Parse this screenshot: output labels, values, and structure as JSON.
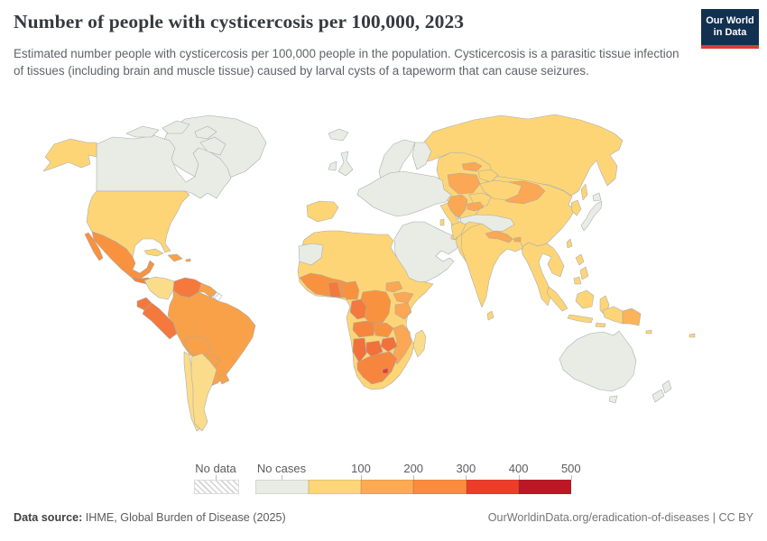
{
  "header": {
    "title": "Number of people with cysticercosis per 100,000, 2023",
    "subtitle": "Estimated number people with cysticercosis per 100,000 people in the population. Cysticercosis is a parasitic tissue infection of tissues (including brain and muscle tissue) caused by larval cysts of a tapeworm that can cause seizures.",
    "logo": {
      "line1": "Our World",
      "line2": "in Data",
      "bg": "#12304f",
      "accent": "#dc3c31"
    }
  },
  "legend": {
    "no_data_label": "No data",
    "no_cases_label": "No cases",
    "tick_labels": [
      "100",
      "200",
      "300",
      "400",
      "500"
    ],
    "bins": [
      {
        "label": "No cases",
        "color": "#e8ece4"
      },
      {
        "label": "100",
        "color": "#fdd67a"
      },
      {
        "label": "200",
        "color": "#fcab53"
      },
      {
        "label": "300",
        "color": "#fb8c3e"
      },
      {
        "label": "400",
        "color": "#ee3c2b"
      },
      {
        "label": "500",
        "color": "#bd1726"
      }
    ]
  },
  "footer": {
    "source_label": "Data source:",
    "source": "IHME, Global Burden of Disease (2025)",
    "right": "OurWorldinData.org/eradication-of-diseases | CC BY"
  },
  "chart_data": {
    "type": "heatmap",
    "subtype": "choropleth-world-map",
    "title": "Number of people with cysticercosis per 100,000, 2023",
    "unit": "cases per 100,000 people",
    "legend_position": "bottom",
    "bin_edges": [
      0,
      100,
      200,
      300,
      400,
      500
    ],
    "bin_colors": [
      "#e8ece4",
      "#fdd67a",
      "#fcab53",
      "#fb8c3e",
      "#ee3c2b",
      "#bd1726"
    ],
    "no_data_style": "hatched"
  },
  "map": {
    "ocean": "#ffffff",
    "border_color": "#a5aaac",
    "regions": [
      {
        "id": "russia",
        "bin": "0-100",
        "fill": "#fdd577"
      },
      {
        "id": "central_asia",
        "bin": "0-100",
        "fill": "#fdd577"
      },
      {
        "id": "turkmenistan",
        "bin": "no_cases",
        "fill": "#e8ece4"
      },
      {
        "id": "china",
        "bin": "0-100",
        "fill": "#fdd577"
      },
      {
        "id": "mongolia",
        "bin": "100-200",
        "fill": "#fba754"
      },
      {
        "id": "korea",
        "bin": "0-100",
        "fill": "#fdd577"
      },
      {
        "id": "japan",
        "bin": "no_cases",
        "fill": "#e8ece4"
      },
      {
        "id": "taiwan",
        "bin": "0-100",
        "fill": "#fdd577"
      },
      {
        "id": "se_asia",
        "bin": "0-100",
        "fill": "#fdd577"
      },
      {
        "id": "philippines",
        "bin": "0-100",
        "fill": "#fdd577"
      },
      {
        "id": "indonesia",
        "bin": "0-100",
        "fill": "#fdd577"
      },
      {
        "id": "papua_new_guinea",
        "bin": "100-200",
        "fill": "#fbb458"
      },
      {
        "id": "pacific_islands",
        "bin": "0-100",
        "fill": "#fdd577"
      },
      {
        "id": "australia",
        "bin": "no_cases",
        "fill": "#e8ece4"
      },
      {
        "id": "new_zealand",
        "bin": "no_cases",
        "fill": "#e8ece4"
      },
      {
        "id": "middle_east",
        "bin": "no_cases",
        "fill": "#e8ece4"
      },
      {
        "id": "turkey",
        "bin": "no_cases",
        "fill": "#e8ece4"
      },
      {
        "id": "cyprus",
        "bin": "no_cases",
        "fill": "#e8ece4"
      },
      {
        "id": "afghanistan_pakistan",
        "bin": "0-100",
        "fill": "#fdd577"
      },
      {
        "id": "india",
        "bin": "0-100",
        "fill": "#fdd577"
      },
      {
        "id": "nepal",
        "bin": "100-200",
        "fill": "#fba754"
      },
      {
        "id": "bhutan",
        "bin": "100-200",
        "fill": "#fba754"
      },
      {
        "id": "sri_lanka",
        "bin": "0-100",
        "fill": "#fdd577"
      },
      {
        "id": "iceland",
        "bin": "no_cases",
        "fill": "#e8ece4"
      },
      {
        "id": "uk",
        "bin": "no_cases",
        "fill": "#e8ece4"
      },
      {
        "id": "ireland",
        "bin": "no_cases",
        "fill": "#e8ece4"
      },
      {
        "id": "scandinavia",
        "bin": "no_cases",
        "fill": "#e8ece4"
      },
      {
        "id": "finland",
        "bin": "no_cases",
        "fill": "#e8ece4"
      },
      {
        "id": "denmark",
        "bin": "no_cases",
        "fill": "#e8ece4"
      },
      {
        "id": "west_europe",
        "bin": "no_cases",
        "fill": "#e8ece4"
      },
      {
        "id": "iberia",
        "bin": "0-100",
        "fill": "#fdd577"
      },
      {
        "id": "italy",
        "bin": "0-100",
        "fill": "#fdd577"
      },
      {
        "id": "poland",
        "bin": "100-200",
        "fill": "#fba754"
      },
      {
        "id": "baltics",
        "bin": "100-200",
        "fill": "#fba754"
      },
      {
        "id": "belarus",
        "bin": "0-100",
        "fill": "#fdd577"
      },
      {
        "id": "ukraine",
        "bin": "0-100",
        "fill": "#fdd577"
      },
      {
        "id": "romania",
        "bin": "0-100",
        "fill": "#fdd577"
      },
      {
        "id": "balkans",
        "bin": "100-200",
        "fill": "#fba754"
      },
      {
        "id": "bulgaria",
        "bin": "100-200",
        "fill": "#fba754"
      },
      {
        "id": "greece",
        "bin": "0-100",
        "fill": "#fdd577"
      },
      {
        "id": "africa",
        "bin": "0-100",
        "fill": "#fdd577"
      },
      {
        "id": "western_sahara",
        "bin": "no_cases",
        "fill": "#e8ece4"
      },
      {
        "id": "west_africa",
        "bin": "200-300",
        "fill": "#f9923f"
      },
      {
        "id": "ghana_togo_benin",
        "bin": "200-300",
        "fill": "#f4793c"
      },
      {
        "id": "nigeria",
        "bin": "200-300",
        "fill": "#f9923f"
      },
      {
        "id": "cameroon_gabon_congo",
        "bin": "200-300",
        "fill": "#f4793c"
      },
      {
        "id": "drc_car",
        "bin": "200-300",
        "fill": "#f9923f"
      },
      {
        "id": "south_sudan",
        "bin": "100-200",
        "fill": "#fba754"
      },
      {
        "id": "uganda_kenya",
        "bin": "100-200",
        "fill": "#fba754"
      },
      {
        "id": "tanzania",
        "bin": "100-200",
        "fill": "#fba754"
      },
      {
        "id": "angola",
        "bin": "200-300",
        "fill": "#f6863d"
      },
      {
        "id": "zambia",
        "bin": "200-300",
        "fill": "#f9923f"
      },
      {
        "id": "malawi_mozambique",
        "bin": "100-200",
        "fill": "#fba754"
      },
      {
        "id": "zimbabwe",
        "bin": "200-300",
        "fill": "#f2703a"
      },
      {
        "id": "namibia",
        "bin": "200-300",
        "fill": "#f2703a"
      },
      {
        "id": "botswana",
        "bin": "200-300",
        "fill": "#f2703a"
      },
      {
        "id": "south_africa",
        "bin": "200-300",
        "fill": "#f6863d"
      },
      {
        "id": "lesotho",
        "bin": "300-400",
        "fill": "#ee3b2a"
      },
      {
        "id": "madagascar",
        "bin": "0-100",
        "fill": "#fbdc8a"
      },
      {
        "id": "greenland",
        "bin": "no_cases",
        "fill": "#e8ece4"
      },
      {
        "id": "canada",
        "bin": "no_cases",
        "fill": "#e8ece4"
      },
      {
        "id": "alaska",
        "bin": "0-100",
        "fill": "#fdd577"
      },
      {
        "id": "usa",
        "bin": "0-100",
        "fill": "#fdd577"
      },
      {
        "id": "mexico",
        "bin": "200-300",
        "fill": "#f9923f"
      },
      {
        "id": "central_america",
        "bin": "200-300",
        "fill": "#f5813d"
      },
      {
        "id": "cuba",
        "bin": "0-100",
        "fill": "#fdd577"
      },
      {
        "id": "hispaniola",
        "bin": "100-200",
        "fill": "#f9a149"
      },
      {
        "id": "puerto_rico",
        "bin": "100-200",
        "fill": "#f9a149"
      },
      {
        "id": "colombia",
        "bin": "0-100",
        "fill": "#fbdc8a"
      },
      {
        "id": "venezuela",
        "bin": "200-300",
        "fill": "#f5793c"
      },
      {
        "id": "guyana_suriname",
        "bin": "100-200",
        "fill": "#f9a149"
      },
      {
        "id": "french_guiana",
        "bin": "no_data",
        "fill": "hatch"
      },
      {
        "id": "ecuador",
        "bin": "200-300",
        "fill": "#f5793c"
      },
      {
        "id": "peru",
        "bin": "200-300",
        "fill": "#f5793c"
      },
      {
        "id": "brazil",
        "bin": "100-200",
        "fill": "#f9a149"
      },
      {
        "id": "bolivia",
        "bin": "100-200",
        "fill": "#f9a149"
      },
      {
        "id": "paraguay",
        "bin": "100-200",
        "fill": "#f9a149"
      },
      {
        "id": "uruguay",
        "bin": "100-200",
        "fill": "#f9a149"
      },
      {
        "id": "chile",
        "bin": "0-100",
        "fill": "#fbdc8a"
      },
      {
        "id": "argentina",
        "bin": "0-100",
        "fill": "#fbdc8a"
      }
    ]
  }
}
